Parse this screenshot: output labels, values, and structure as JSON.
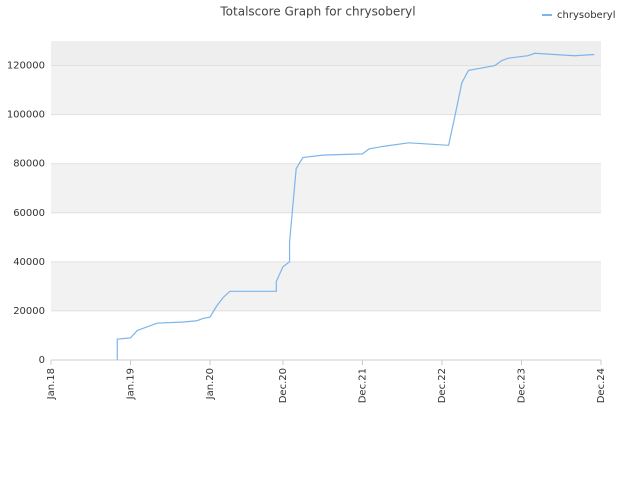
{
  "chart_data": {
    "type": "line",
    "title": "Totalscore Graph for chrysoberyl",
    "x": [
      "2018-11",
      "2018-11",
      "2019-01",
      "2019-02",
      "2019-03",
      "2019-05",
      "2019-09",
      "2019-11",
      "2019-12",
      "2020-01",
      "2020-02",
      "2020-03",
      "2020-04",
      "2020-11",
      "2020-11",
      "2020-12",
      "2021-01",
      "2021-01",
      "2021-02",
      "2021-03",
      "2021-06",
      "2021-12",
      "2022-01",
      "2022-03",
      "2022-07",
      "2022-10",
      "2023-01",
      "2023-02",
      "2023-03",
      "2023-04",
      "2023-08",
      "2023-09",
      "2023-10",
      "2024-01",
      "2024-02",
      "2024-05",
      "2024-08",
      "2024-11"
    ],
    "series": [
      {
        "name": "chrysoberyl",
        "color": "#7cb5ec",
        "values": [
          0,
          8500,
          9000,
          12000,
          13000,
          15000,
          15500,
          16000,
          17000,
          17500,
          22000,
          25500,
          28000,
          28000,
          32000,
          38000,
          40000,
          48000,
          78000,
          82500,
          83500,
          84000,
          86000,
          87000,
          88500,
          88000,
          87500,
          100000,
          113000,
          118000,
          120000,
          122000,
          123000,
          124000,
          125000,
          124500,
          124000,
          124500
        ]
      }
    ],
    "xlim": [
      "2018-01",
      "2024-12"
    ],
    "xticks": [
      {
        "value": "2018-01",
        "label": "Jan.18"
      },
      {
        "value": "2019-01",
        "label": "Jan.19"
      },
      {
        "value": "2020-01",
        "label": "Jan.20"
      },
      {
        "value": "2020-12",
        "label": "Dec.20"
      },
      {
        "value": "2021-12",
        "label": "Dec.21"
      },
      {
        "value": "2022-12",
        "label": "Dec.22"
      },
      {
        "value": "2023-12",
        "label": "Dec.23"
      },
      {
        "value": "2024-12",
        "label": "Dec.24"
      }
    ],
    "ylim": [
      0,
      130000
    ],
    "yticks": [
      0,
      20000,
      40000,
      60000,
      80000,
      100000,
      120000
    ],
    "grid": true,
    "legend": "top-right"
  }
}
